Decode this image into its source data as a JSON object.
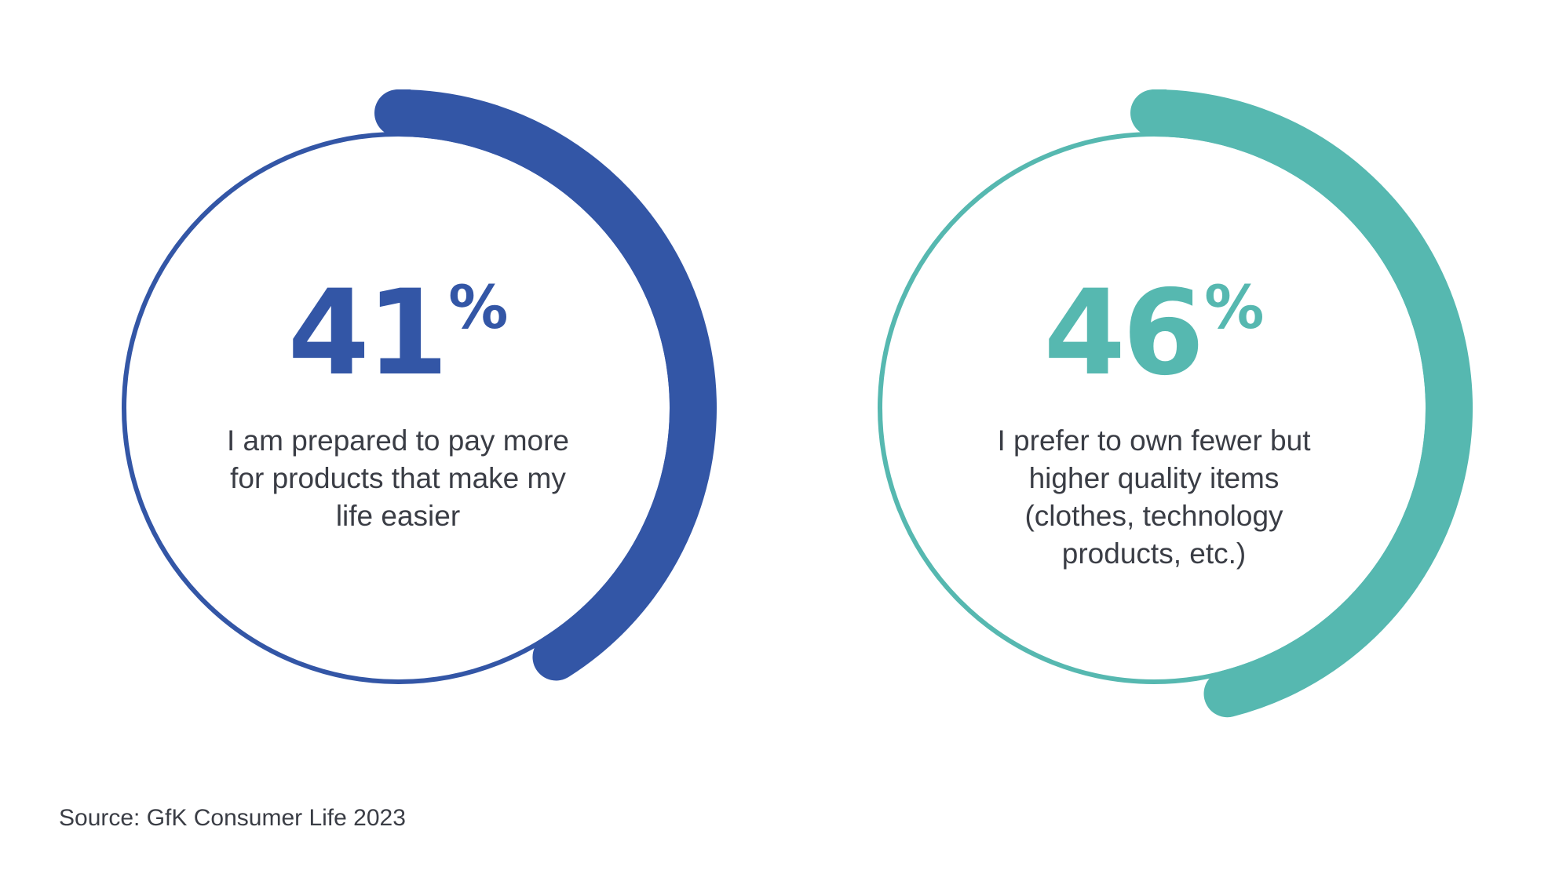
{
  "chart_data": [
    {
      "type": "gauge",
      "value": 41,
      "unit": "%",
      "label": "I am prepared to pay more for products that make my life easier",
      "color": "#3356a6"
    },
    {
      "type": "gauge",
      "value": 46,
      "unit": "%",
      "label": "I prefer to own fewer but higher quality items (clothes, technology products, etc.)",
      "color": "#56b8b0"
    }
  ],
  "source": "Source: GfK Consumer Life 2023"
}
